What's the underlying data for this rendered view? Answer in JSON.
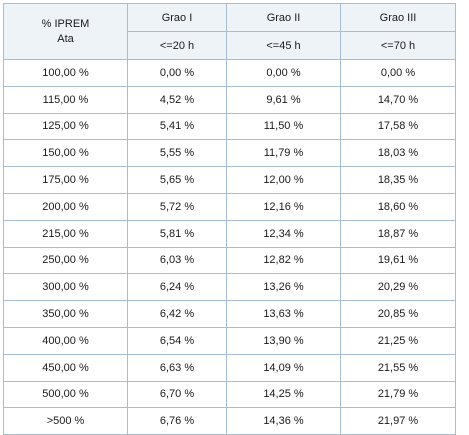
{
  "table": {
    "corner_line1": "% IPREM",
    "corner_line2": "Ata",
    "columns": [
      {
        "grade": "Grao I",
        "limit": "<=20 h"
      },
      {
        "grade": "Grao II",
        "limit": "<=45 h"
      },
      {
        "grade": "Grao III",
        "limit": "<=70 h"
      }
    ],
    "rows": [
      [
        "100,00 %",
        "0,00 %",
        "0,00 %",
        "0,00 %"
      ],
      [
        "115,00 %",
        "4,52 %",
        "9,61 %",
        "14,70 %"
      ],
      [
        "125,00 %",
        "5,41 %",
        "11,50 %",
        "17,58 %"
      ],
      [
        "150,00 %",
        "5,55 %",
        "11,79 %",
        "18,03 %"
      ],
      [
        "175,00 %",
        "5,65 %",
        "12,00 %",
        "18,35 %"
      ],
      [
        "200,00 %",
        "5,72 %",
        "12,16 %",
        "18,60 %"
      ],
      [
        "215,00 %",
        "5,81 %",
        "12,34 %",
        "18,87 %"
      ],
      [
        "250,00 %",
        "6,03 %",
        "12,82 %",
        "19,61 %"
      ],
      [
        "300,00 %",
        "6,24 %",
        "13,26 %",
        "20,29 %"
      ],
      [
        "350,00 %",
        "6,42 %",
        "13,63 %",
        "20,85 %"
      ],
      [
        "400,00 %",
        "6,54 %",
        "13,90 %",
        "21,25 %"
      ],
      [
        "450,00 %",
        "6,63 %",
        "14,09 %",
        "21,55 %"
      ],
      [
        "500,00 %",
        "6,70 %",
        "14,25 %",
        "21,79 %"
      ],
      [
        ">500 %",
        "6,76 %",
        "14,36 %",
        "21,97 %"
      ]
    ]
  }
}
